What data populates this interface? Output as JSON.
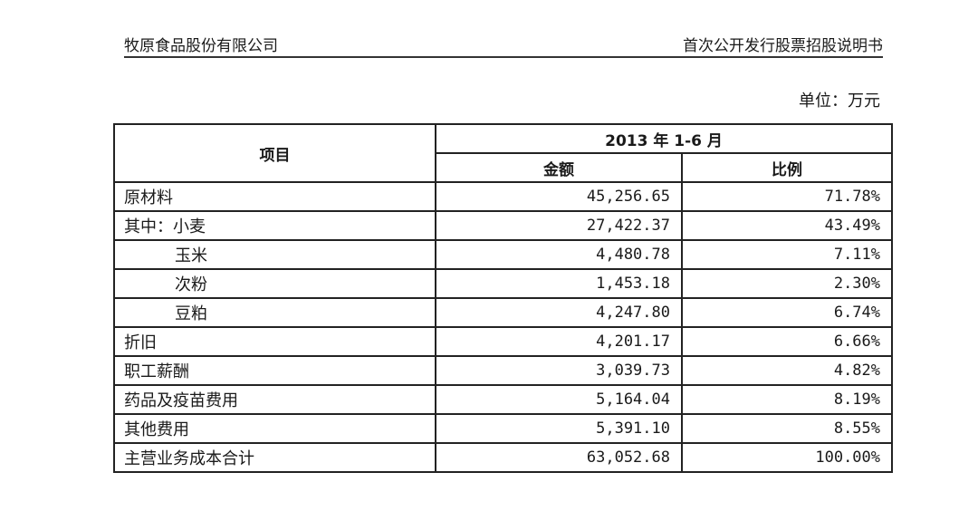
{
  "header": {
    "company": "牧原食品股份有限公司",
    "document": "首次公开发行股票招股说明书"
  },
  "unit": "单位：万元",
  "table": {
    "item_header": "项目",
    "period_header": "2013 年 1-6 月",
    "amount_header": "金额",
    "ratio_header": "比例",
    "rows": [
      {
        "label": "原材料",
        "amount": "45,256.65",
        "ratio": "71.78%"
      },
      {
        "label": "其中：小麦",
        "amount": "27,422.37",
        "ratio": "43.49%"
      },
      {
        "label": "玉米",
        "amount": "4,480.78",
        "ratio": "7.11%"
      },
      {
        "label": "次粉",
        "amount": "1,453.18",
        "ratio": "2.30%"
      },
      {
        "label": "豆粕",
        "amount": "4,247.80",
        "ratio": "6.74%"
      },
      {
        "label": "折旧",
        "amount": "4,201.17",
        "ratio": "6.66%"
      },
      {
        "label": "职工薪酬",
        "amount": "3,039.73",
        "ratio": "4.82%"
      },
      {
        "label": "药品及疫苗费用",
        "amount": "5,164.04",
        "ratio": "8.19%"
      },
      {
        "label": "其他费用",
        "amount": "5,391.10",
        "ratio": "8.55%"
      },
      {
        "label": "主营业务成本合计",
        "amount": "63,052.68",
        "ratio": "100.00%"
      }
    ]
  }
}
